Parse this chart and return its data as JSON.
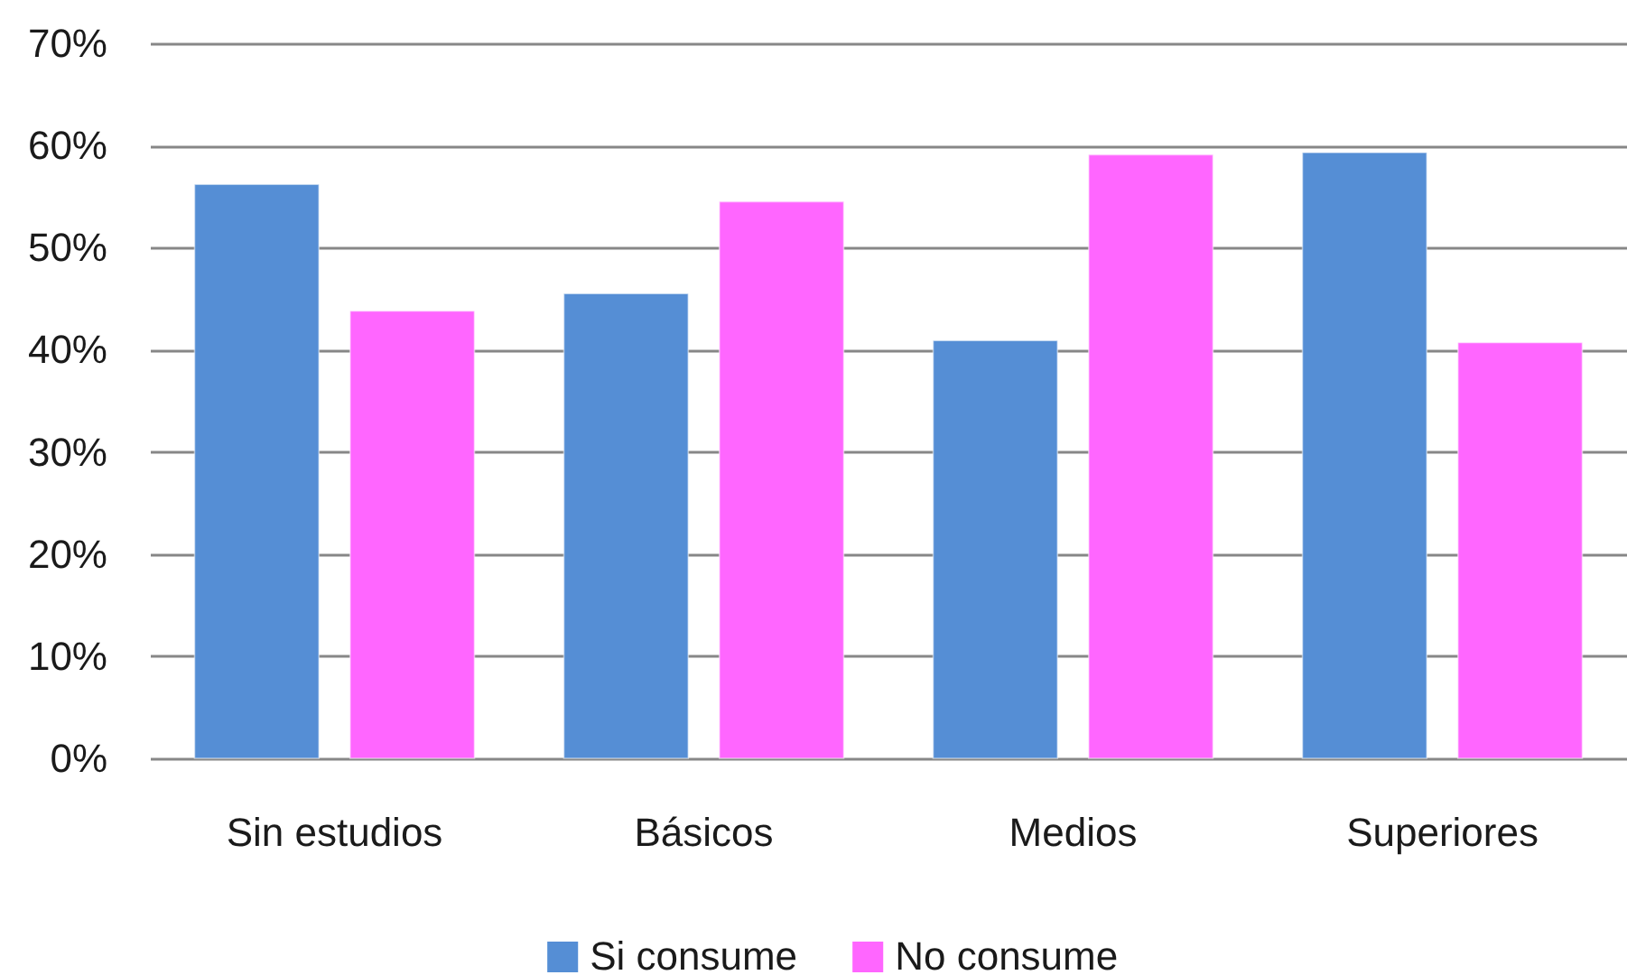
{
  "chart_data": {
    "type": "bar",
    "categories": [
      "Sin estudios",
      "Básicos",
      "Medios",
      "Superiores"
    ],
    "series": [
      {
        "name": "Si consume",
        "color": "#558ed5",
        "values": [
          56.2,
          45.5,
          40.9,
          59.3
        ]
      },
      {
        "name": "No consume",
        "color": "#ff66ff",
        "values": [
          43.8,
          54.5,
          59.1,
          40.7
        ]
      }
    ],
    "ylim": [
      0,
      70
    ],
    "yticks": [
      {
        "value": 0,
        "label": "0%"
      },
      {
        "value": 10,
        "label": "10%"
      },
      {
        "value": 20,
        "label": "20%"
      },
      {
        "value": 30,
        "label": "30%"
      },
      {
        "value": 40,
        "label": "40%"
      },
      {
        "value": 50,
        "label": "50%"
      },
      {
        "value": 60,
        "label": "60%"
      },
      {
        "value": 70,
        "label": "70%"
      }
    ],
    "grid": "y",
    "legend": "bottom"
  }
}
